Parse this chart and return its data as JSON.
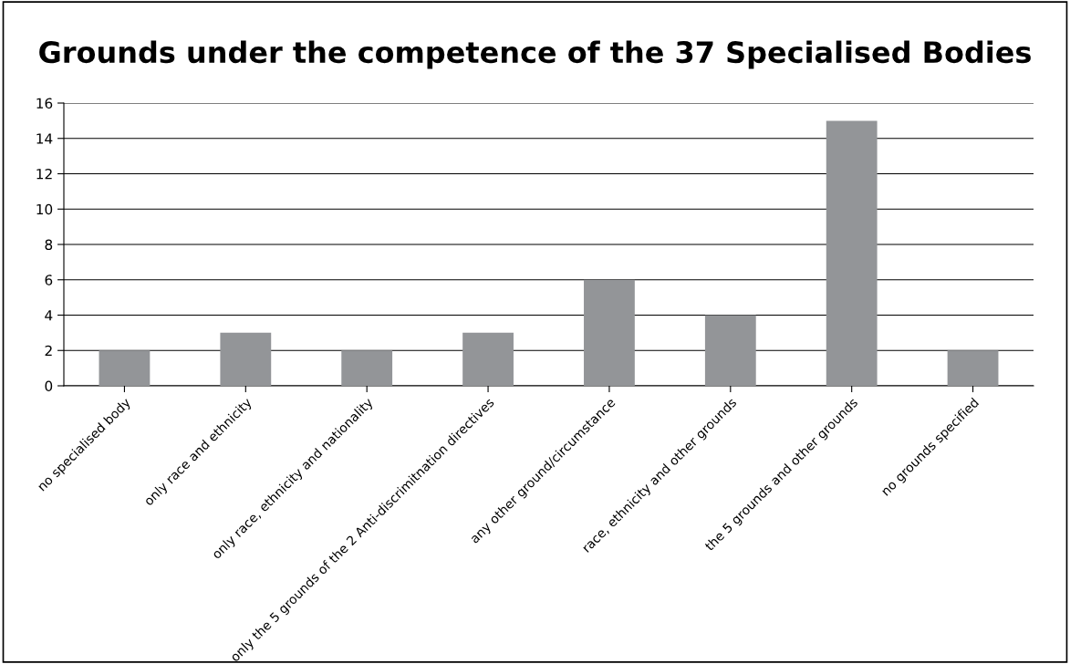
{
  "chart_data": {
    "type": "bar",
    "title": "Grounds under the competence of the 37 Specialised Bodies",
    "categories": [
      "no specialised body",
      "only race and ethnicity",
      "only race, ethnicity and nationality",
      "only the 5 grounds of the 2 Anti-discrimitnation directives",
      "any other ground/circumstance",
      "race, ethnicity and other grounds",
      "the 5 grounds and other grounds",
      "no grounds specified"
    ],
    "values": [
      2,
      3,
      2,
      3,
      6,
      4,
      15,
      2
    ],
    "color": "#939598",
    "ylim": [
      0,
      16
    ],
    "yticks": [
      0,
      2,
      4,
      6,
      8,
      10,
      12,
      14,
      16
    ],
    "grid": "y",
    "legend": false
  }
}
